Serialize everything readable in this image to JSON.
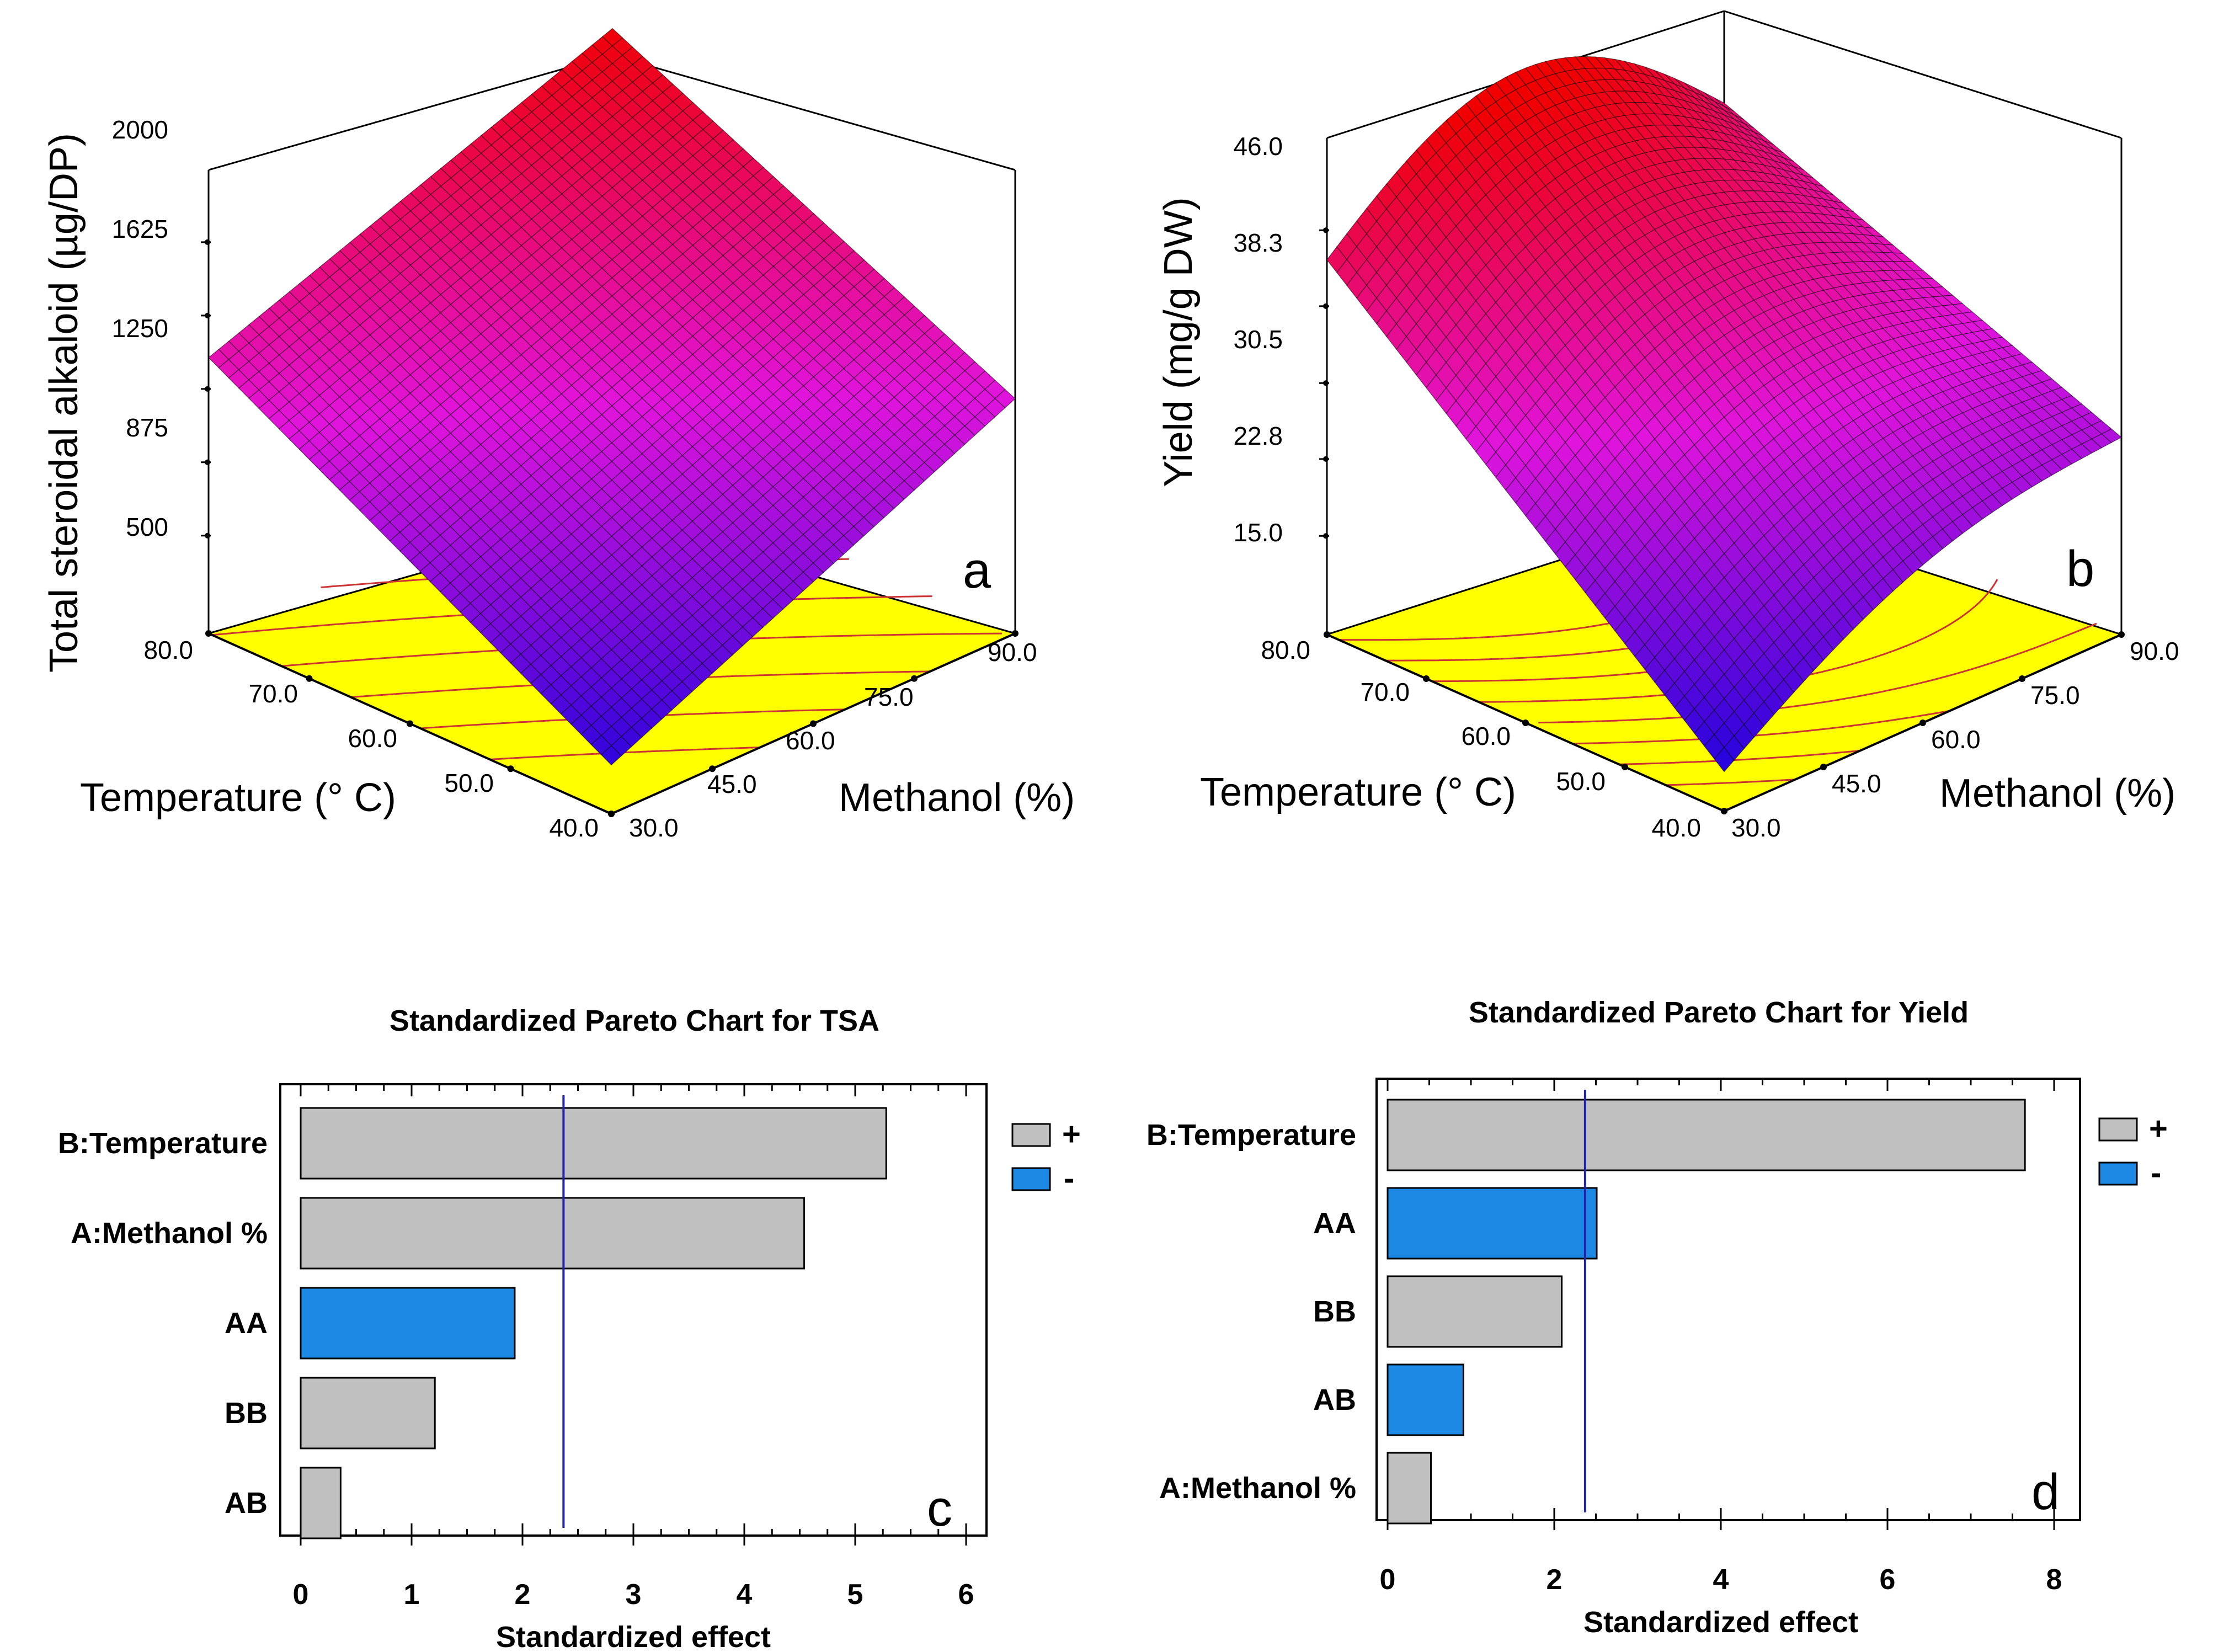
{
  "chart_data": [
    {
      "panel": "a",
      "type": "surface",
      "zlabel": "Total steroidal alkaloid (µg/DP)",
      "xlabel": "Methanol (%)",
      "ylabel": "Temperature (° C)",
      "z_ticks": [
        "500",
        "875",
        "1250",
        "1625",
        "2000"
      ],
      "x_ticks": [
        "30.0",
        "45.0",
        "60.0",
        "75.0",
        "90.0"
      ],
      "y_ticks": [
        "40.0",
        "50.0",
        "60.0",
        "70.0",
        "80.0"
      ],
      "surface_corners": {
        "methanol_30_temp_40": 250,
        "methanol_90_temp_40": 1200,
        "methanol_30_temp_80": 1410,
        "methanol_90_temp_80": 2170
      },
      "colors": {
        "surface_high": "#ff0000",
        "surface_mid": "#ee22dd",
        "surface_low": "#0000ee",
        "contour_floor": "#ffff00",
        "contour_line": "#cc3333"
      }
    },
    {
      "panel": "b",
      "type": "surface",
      "zlabel": "Yield (mg/g DW)",
      "xlabel": "Methanol (%)",
      "ylabel": "Temperature (° C)",
      "z_ticks": [
        "15.0",
        "22.8",
        "30.5",
        "38.3",
        "46.0"
      ],
      "x_ticks": [
        "30.0",
        "45.0",
        "60.0",
        "75.0",
        "90.0"
      ],
      "y_ticks": [
        "40.0",
        "50.0",
        "60.0",
        "70.0",
        "80.0"
      ],
      "surface_corners": {
        "methanol_30_temp_40": 9,
        "methanol_90_temp_40": 25,
        "methanol_30_temp_80": 43,
        "methanol_90_temp_80": 47,
        "peak_methanol_55_temp_80": 50
      },
      "colors": {
        "surface_high": "#ff0000",
        "surface_mid": "#ee22dd",
        "surface_low": "#0000ee",
        "contour_floor": "#ffff00",
        "contour_line": "#cc3333"
      }
    },
    {
      "panel": "c",
      "type": "bar",
      "orientation": "horizontal",
      "title": "Standardized Pareto Chart for TSA",
      "xlabel": "Standardized effect",
      "categories": [
        "B:Temperature",
        "A:Methanol %",
        "AA",
        "BB",
        "AB"
      ],
      "values": [
        5.28,
        4.54,
        1.93,
        1.21,
        0.36
      ],
      "signs": [
        "+",
        "+",
        "-",
        "+",
        "+"
      ],
      "xlim": [
        0,
        6
      ],
      "x_ticks": [
        "0",
        "1",
        "2",
        "3",
        "4",
        "5",
        "6"
      ],
      "reference_line": 2.37,
      "legend": [
        {
          "label": "+",
          "color": "#c0c0c0"
        },
        {
          "label": "-",
          "color": "#1e88e5"
        }
      ],
      "letter": "c"
    },
    {
      "panel": "d",
      "type": "bar",
      "orientation": "horizontal",
      "title": "Standardized Pareto Chart for Yield",
      "xlabel": "Standardized effect",
      "categories": [
        "B:Temperature",
        "AA",
        "BB",
        "AB",
        "A:Methanol %"
      ],
      "values": [
        7.65,
        2.51,
        2.09,
        0.91,
        0.52
      ],
      "signs": [
        "+",
        "-",
        "+",
        "-",
        "+"
      ],
      "xlim": [
        0,
        8
      ],
      "x_ticks": [
        "0",
        "2",
        "4",
        "6",
        "8"
      ],
      "reference_line": 2.37,
      "legend": [
        {
          "label": "+",
          "color": "#c0c0c0"
        },
        {
          "label": "-",
          "color": "#1e88e5"
        }
      ],
      "letter": "d"
    }
  ]
}
